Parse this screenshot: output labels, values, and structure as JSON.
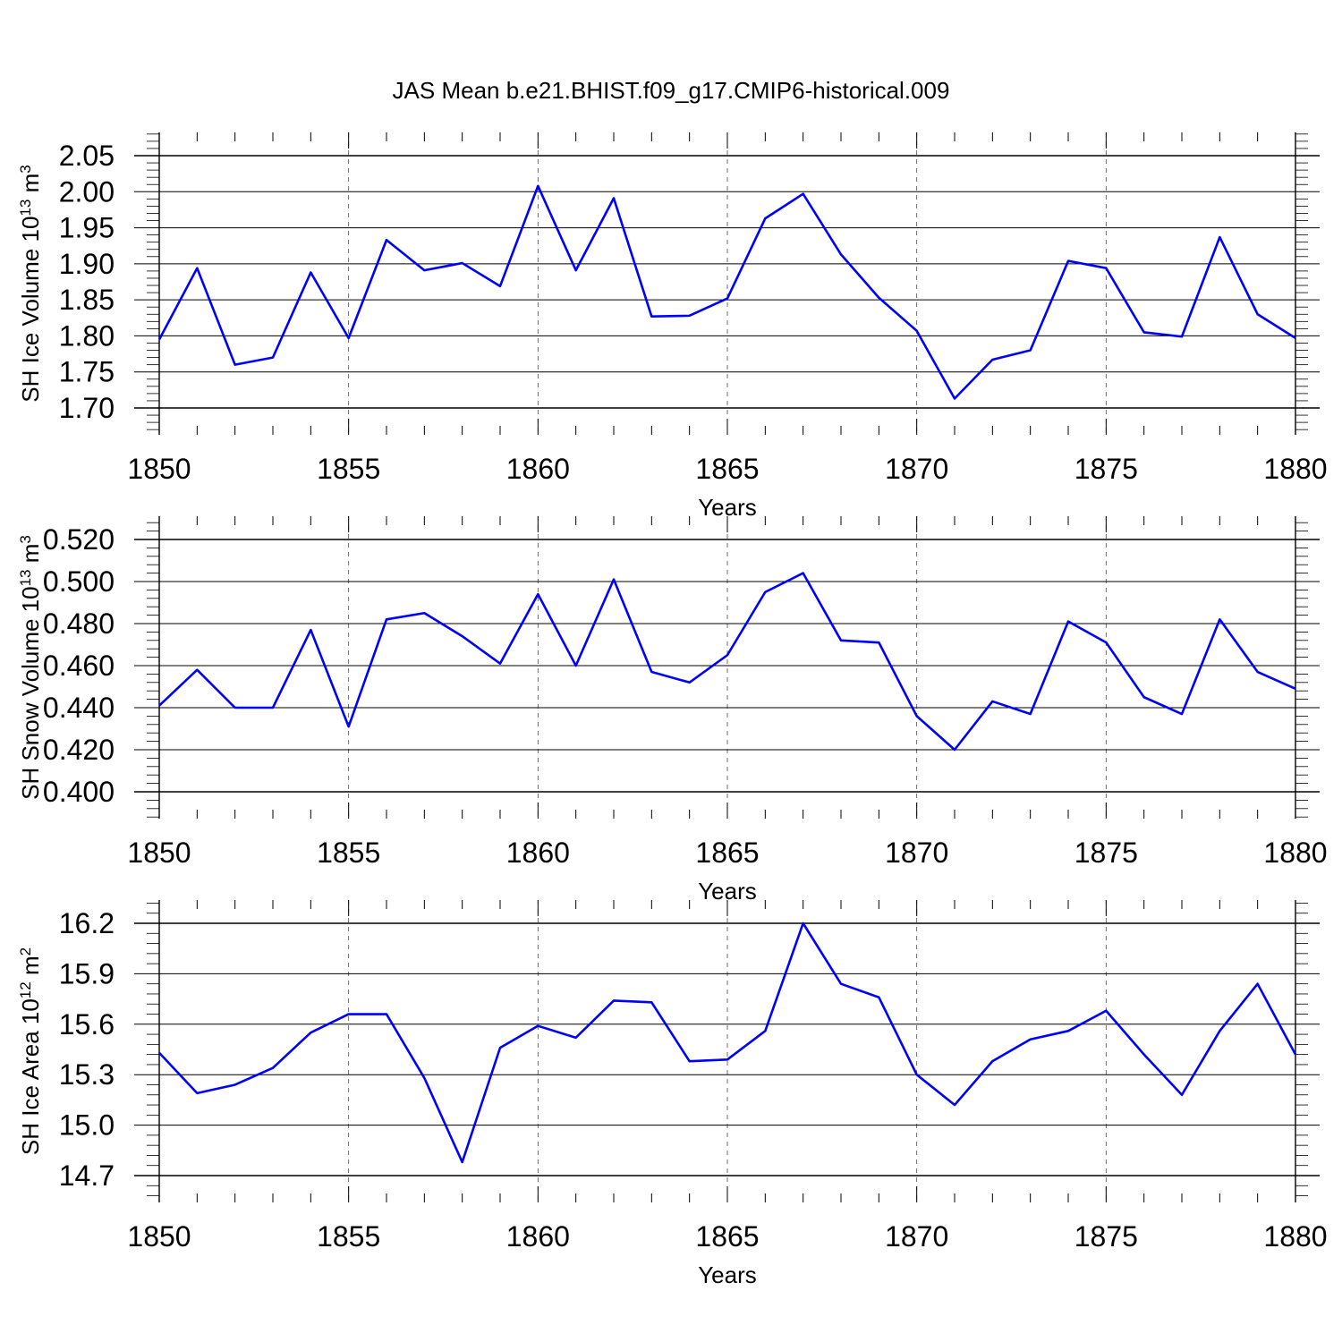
{
  "figure": {
    "title": "JAS Mean b.e21.BHIST.f09_g17.CMIP6-historical.009"
  },
  "chart_data": [
    {
      "type": "line",
      "title": "JAS Mean b.e21.BHIST.f09_g17.CMIP6-historical.009",
      "xlabel": "Years",
      "ylabel": {
        "base": "SH Ice Volume 10",
        "exponent": "13",
        "unit": " m",
        "unit_exponent": "3"
      },
      "xlim": [
        1850,
        1880
      ],
      "ylim": [
        1.7,
        2.05
      ],
      "xticks": [
        "1850",
        "1855",
        "1860",
        "1865",
        "1870",
        "1875",
        "1880"
      ],
      "yticks": [
        "1.70",
        "1.75",
        "1.80",
        "1.85",
        "1.90",
        "1.95",
        "2.00",
        "2.05"
      ],
      "grid": "vertical dashed at major x ticks",
      "line_color": "#0000ff",
      "x": [
        1850,
        1851,
        1852,
        1853,
        1854,
        1855,
        1856,
        1857,
        1858,
        1859,
        1860,
        1861,
        1862,
        1863,
        1864,
        1865,
        1866,
        1867,
        1868,
        1869,
        1870,
        1871,
        1872,
        1873,
        1874,
        1875,
        1876,
        1877,
        1878,
        1879,
        1880
      ],
      "values": [
        1.795,
        1.894,
        1.76,
        1.77,
        1.888,
        1.797,
        1.933,
        1.891,
        1.901,
        1.869,
        2.008,
        1.891,
        1.991,
        1.827,
        1.828,
        1.852,
        1.963,
        1.997,
        1.913,
        1.853,
        1.807,
        1.713,
        1.767,
        1.78,
        1.904,
        1.894,
        1.805,
        1.799,
        1.937,
        1.83,
        1.797
      ]
    },
    {
      "type": "line",
      "xlabel": "Years",
      "ylabel": {
        "base": "SH Snow Volume 10",
        "exponent": "13",
        "unit": " m",
        "unit_exponent": "3"
      },
      "xlim": [
        1850,
        1880
      ],
      "ylim": [
        0.4,
        0.52
      ],
      "xticks": [
        "1850",
        "1855",
        "1860",
        "1865",
        "1870",
        "1875",
        "1880"
      ],
      "yticks": [
        "0.400",
        "0.420",
        "0.440",
        "0.460",
        "0.480",
        "0.500",
        "0.520"
      ],
      "grid": "vertical dashed at major x ticks",
      "line_color": "#0000ff",
      "x": [
        1850,
        1851,
        1852,
        1853,
        1854,
        1855,
        1856,
        1857,
        1858,
        1859,
        1860,
        1861,
        1862,
        1863,
        1864,
        1865,
        1866,
        1867,
        1868,
        1869,
        1870,
        1871,
        1872,
        1873,
        1874,
        1875,
        1876,
        1877,
        1878,
        1879,
        1880
      ],
      "values": [
        0.441,
        0.458,
        0.44,
        0.44,
        0.477,
        0.431,
        0.482,
        0.485,
        0.474,
        0.461,
        0.494,
        0.46,
        0.501,
        0.457,
        0.452,
        0.465,
        0.495,
        0.504,
        0.472,
        0.471,
        0.436,
        0.42,
        0.443,
        0.437,
        0.481,
        0.471,
        0.445,
        0.437,
        0.482,
        0.457,
        0.449
      ]
    },
    {
      "type": "line",
      "xlabel": "Years",
      "ylabel": {
        "base": "SH Ice Area 10",
        "exponent": "12",
        "unit": " m",
        "unit_exponent": "2"
      },
      "xlim": [
        1850,
        1880
      ],
      "ylim": [
        14.7,
        16.2
      ],
      "xticks": [
        "1850",
        "1855",
        "1860",
        "1865",
        "1870",
        "1875",
        "1880"
      ],
      "yticks": [
        "14.7",
        "15.0",
        "15.3",
        "15.6",
        "15.9",
        "16.2"
      ],
      "grid": "vertical dashed at major x ticks",
      "line_color": "#0000ff",
      "x": [
        1850,
        1851,
        1852,
        1853,
        1854,
        1855,
        1856,
        1857,
        1858,
        1859,
        1860,
        1861,
        1862,
        1863,
        1864,
        1865,
        1866,
        1867,
        1868,
        1869,
        1870,
        1871,
        1872,
        1873,
        1874,
        1875,
        1876,
        1877,
        1878,
        1879,
        1880
      ],
      "values": [
        15.43,
        15.19,
        15.24,
        15.34,
        15.55,
        15.66,
        15.66,
        15.28,
        14.78,
        15.46,
        15.59,
        15.52,
        15.74,
        15.73,
        15.38,
        15.39,
        15.56,
        16.2,
        15.84,
        15.76,
        15.3,
        15.12,
        15.38,
        15.51,
        15.56,
        15.68,
        15.42,
        15.18,
        15.56,
        15.84,
        15.42
      ]
    }
  ]
}
